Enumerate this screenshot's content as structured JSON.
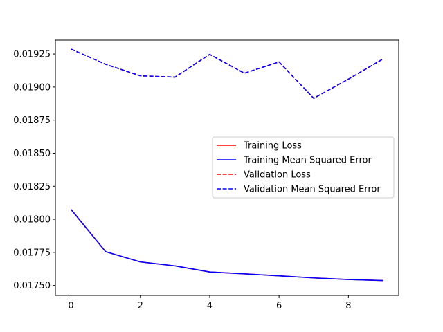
{
  "chart_data": {
    "type": "line",
    "x": [
      0,
      1,
      2,
      3,
      4,
      5,
      6,
      7,
      8,
      9
    ],
    "xlim": [
      -0.45,
      9.45
    ],
    "ylim": [
      0.017425,
      0.019355
    ],
    "xticks": [
      0,
      2,
      4,
      6,
      8
    ],
    "xtick_labels": [
      "0",
      "2",
      "4",
      "6",
      "8"
    ],
    "yticks": [
      0.0175,
      0.01775,
      0.018,
      0.01825,
      0.0185,
      0.01875,
      0.019,
      0.01925
    ],
    "ytick_labels": [
      "0.01750",
      "0.01775",
      "0.01800",
      "0.01825",
      "0.01850",
      "0.01875",
      "0.01900",
      "0.01925"
    ],
    "grid": false,
    "legend_position": "center-right",
    "series": [
      {
        "name": "Training Loss",
        "color": "#ff0000",
        "dash": "solid",
        "values": [
          0.018075,
          0.017755,
          0.017678,
          0.017648,
          0.017602,
          0.017588,
          0.017573,
          0.017557,
          0.017545,
          0.017537
        ]
      },
      {
        "name": "Training Mean Squared Error",
        "color": "#0000ff",
        "dash": "solid",
        "values": [
          0.018075,
          0.017755,
          0.017678,
          0.017648,
          0.017602,
          0.017588,
          0.017573,
          0.017557,
          0.017545,
          0.017537
        ]
      },
      {
        "name": "Validation Loss",
        "color": "#ff0000",
        "dash": "dashed",
        "values": [
          0.019287,
          0.019172,
          0.019085,
          0.019075,
          0.019247,
          0.019105,
          0.01919,
          0.018915,
          0.01906,
          0.019213
        ]
      },
      {
        "name": "Validation Mean Squared Error",
        "color": "#0000ff",
        "dash": "dashed",
        "values": [
          0.019287,
          0.019172,
          0.019085,
          0.019075,
          0.019247,
          0.019105,
          0.01919,
          0.018915,
          0.01906,
          0.019213
        ]
      }
    ]
  }
}
